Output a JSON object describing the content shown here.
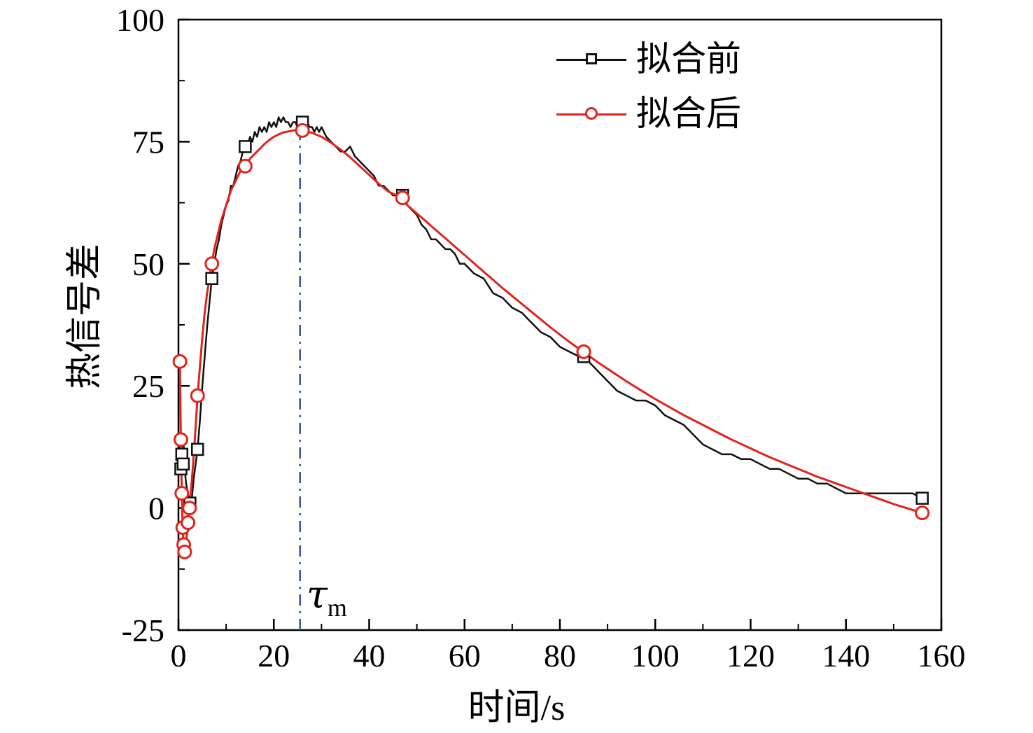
{
  "chart_data": {
    "type": "line",
    "title": "",
    "xlabel": "时间/s",
    "ylabel": "热信号差",
    "xlim": [
      0,
      160
    ],
    "ylim": [
      -25,
      100
    ],
    "xticks": [
      0,
      20,
      40,
      60,
      80,
      100,
      120,
      140,
      160
    ],
    "x_minor_step": 10,
    "yticks": [
      -25,
      0,
      25,
      50,
      75,
      100
    ],
    "y_minor_step": 12.5,
    "grid": false,
    "legend_position": "top-center-inside",
    "annotation": {
      "label": "τ",
      "sub": "m",
      "x": 25.5,
      "y_top": 77.4,
      "line_color": "#33519e",
      "line_style": "dash-dot"
    },
    "series": [
      {
        "name": "拟合前",
        "color": "#111111",
        "marker": "square",
        "line": [
          [
            0.3,
            7
          ],
          [
            0.5,
            8
          ],
          [
            0.6,
            11
          ],
          [
            0.8,
            10
          ],
          [
            1.0,
            9
          ],
          [
            1.3,
            8
          ],
          [
            1.6,
            5
          ],
          [
            2.0,
            3
          ],
          [
            2.4,
            1
          ],
          [
            2.8,
            2
          ],
          [
            3.2,
            6
          ],
          [
            3.6,
            9
          ],
          [
            4.0,
            12
          ],
          [
            4.5,
            18
          ],
          [
            5,
            25
          ],
          [
            5.5,
            31
          ],
          [
            6,
            37
          ],
          [
            6.5,
            42
          ],
          [
            7,
            47
          ],
          [
            7.5,
            50
          ],
          [
            8,
            53
          ],
          [
            8.5,
            55
          ],
          [
            9,
            58
          ],
          [
            9.5,
            60
          ],
          [
            10,
            62
          ],
          [
            10.5,
            63
          ],
          [
            11,
            66
          ],
          [
            11.5,
            66
          ],
          [
            12,
            68
          ],
          [
            12.5,
            70
          ],
          [
            13,
            71
          ],
          [
            13.5,
            73
          ],
          [
            14,
            74
          ],
          [
            14.5,
            74
          ],
          [
            15,
            76
          ],
          [
            15.5,
            75
          ],
          [
            16,
            77
          ],
          [
            16.5,
            76
          ],
          [
            17,
            78
          ],
          [
            17.5,
            77
          ],
          [
            18,
            78
          ],
          [
            18.5,
            77
          ],
          [
            19,
            79
          ],
          [
            19.5,
            78
          ],
          [
            20,
            79
          ],
          [
            20.5,
            78
          ],
          [
            21,
            80
          ],
          [
            21.5,
            79
          ],
          [
            22,
            80
          ],
          [
            22.5,
            79
          ],
          [
            23,
            79
          ],
          [
            23.5,
            78
          ],
          [
            24,
            79
          ],
          [
            24.5,
            79
          ],
          [
            25,
            78
          ],
          [
            25.5,
            79
          ],
          [
            26,
            79
          ],
          [
            26.5,
            78
          ],
          [
            27,
            79
          ],
          [
            27.5,
            78
          ],
          [
            28,
            78
          ],
          [
            28.5,
            77
          ],
          [
            29,
            78
          ],
          [
            29.5,
            77
          ],
          [
            30,
            78
          ],
          [
            31,
            76
          ],
          [
            32,
            75
          ],
          [
            33,
            74
          ],
          [
            34,
            73
          ],
          [
            35,
            73
          ],
          [
            36,
            74
          ],
          [
            37,
            72
          ],
          [
            38,
            71
          ],
          [
            39,
            70
          ],
          [
            40,
            69
          ],
          [
            41,
            68
          ],
          [
            42,
            66
          ],
          [
            43,
            66
          ],
          [
            44,
            65
          ],
          [
            45,
            64
          ],
          [
            46,
            64
          ],
          [
            47,
            64
          ],
          [
            48,
            62
          ],
          [
            49,
            61
          ],
          [
            50,
            60
          ],
          [
            51,
            58
          ],
          [
            52,
            57
          ],
          [
            53,
            55
          ],
          [
            54,
            55
          ],
          [
            55,
            54
          ],
          [
            56,
            53
          ],
          [
            57,
            53
          ],
          [
            58,
            52
          ],
          [
            59,
            50
          ],
          [
            60,
            50
          ],
          [
            62,
            48
          ],
          [
            64,
            47
          ],
          [
            66,
            44
          ],
          [
            68,
            43
          ],
          [
            70,
            41
          ],
          [
            72,
            40
          ],
          [
            74,
            38
          ],
          [
            76,
            36
          ],
          [
            78,
            35
          ],
          [
            80,
            33
          ],
          [
            82,
            32
          ],
          [
            84,
            31
          ],
          [
            86,
            30
          ],
          [
            88,
            28
          ],
          [
            90,
            26
          ],
          [
            92,
            24
          ],
          [
            94,
            23
          ],
          [
            96,
            22
          ],
          [
            98,
            22
          ],
          [
            100,
            21
          ],
          [
            102,
            19
          ],
          [
            104,
            18
          ],
          [
            106,
            17
          ],
          [
            108,
            15
          ],
          [
            110,
            13
          ],
          [
            112,
            12
          ],
          [
            114,
            11
          ],
          [
            116,
            11
          ],
          [
            118,
            10
          ],
          [
            120,
            10
          ],
          [
            122,
            9
          ],
          [
            124,
            8
          ],
          [
            126,
            8
          ],
          [
            128,
            7
          ],
          [
            130,
            6
          ],
          [
            132,
            6
          ],
          [
            134,
            5
          ],
          [
            136,
            5
          ],
          [
            138,
            4
          ],
          [
            140,
            3
          ],
          [
            142,
            3
          ],
          [
            144,
            3
          ],
          [
            146,
            3
          ],
          [
            148,
            3
          ],
          [
            150,
            3
          ],
          [
            152,
            3
          ],
          [
            154,
            3
          ],
          [
            156,
            2
          ]
        ],
        "markers": [
          [
            0.5,
            8
          ],
          [
            0.7,
            11
          ],
          [
            1.0,
            9
          ],
          [
            2.4,
            1
          ],
          [
            4,
            12
          ],
          [
            7,
            47
          ],
          [
            14,
            74
          ],
          [
            26,
            79
          ],
          [
            47,
            64
          ],
          [
            85,
            31
          ],
          [
            156,
            2
          ]
        ]
      },
      {
        "name": "拟合后",
        "color": "#e2231a",
        "marker": "circle",
        "line": [
          [
            0.3,
            30
          ],
          [
            0.4,
            22
          ],
          [
            0.5,
            14
          ],
          [
            0.6,
            8
          ],
          [
            0.7,
            3
          ],
          [
            0.8,
            -1
          ],
          [
            0.9,
            -4
          ],
          [
            1.0,
            -6
          ],
          [
            1.1,
            -7.5
          ],
          [
            1.2,
            -8.5
          ],
          [
            1.3,
            -9
          ],
          [
            1.5,
            -8
          ],
          [
            1.8,
            -5
          ],
          [
            2.0,
            -3
          ],
          [
            2.3,
            0
          ],
          [
            2.6,
            3
          ],
          [
            3.0,
            8
          ],
          [
            3.5,
            15
          ],
          [
            4.0,
            23
          ],
          [
            4.5,
            29
          ],
          [
            5,
            35
          ],
          [
            5.5,
            40
          ],
          [
            6,
            44
          ],
          [
            6.5,
            47
          ],
          [
            7,
            50
          ],
          [
            7.5,
            53
          ],
          [
            8,
            55
          ],
          [
            9,
            59
          ],
          [
            10,
            62
          ],
          [
            11,
            65
          ],
          [
            12,
            67
          ],
          [
            13,
            69
          ],
          [
            14,
            70
          ],
          [
            15,
            71.5
          ],
          [
            16,
            72.5
          ],
          [
            17,
            73.5
          ],
          [
            18,
            74.5
          ],
          [
            19,
            75.3
          ],
          [
            20,
            76
          ],
          [
            21,
            76.5
          ],
          [
            22,
            76.9
          ],
          [
            23,
            77.1
          ],
          [
            24,
            77.3
          ],
          [
            25,
            77.4
          ],
          [
            26,
            77.3
          ],
          [
            27,
            77.1
          ],
          [
            28,
            76.8
          ],
          [
            29,
            76.4
          ],
          [
            30,
            76
          ],
          [
            32,
            74.8
          ],
          [
            34,
            73.4
          ],
          [
            36,
            71.8
          ],
          [
            38,
            70
          ],
          [
            40,
            68.2
          ],
          [
            42,
            66.4
          ],
          [
            44,
            64.8
          ],
          [
            46,
            63.9
          ],
          [
            48,
            62
          ],
          [
            50,
            60.3
          ],
          [
            52,
            58.6
          ],
          [
            54,
            56.9
          ],
          [
            56,
            55.2
          ],
          [
            58,
            53.5
          ],
          [
            60,
            51.8
          ],
          [
            62,
            50.1
          ],
          [
            64,
            48.4
          ],
          [
            66,
            46.7
          ],
          [
            68,
            45
          ],
          [
            70,
            43.4
          ],
          [
            72,
            41.8
          ],
          [
            74,
            40.2
          ],
          [
            76,
            38.6
          ],
          [
            78,
            37
          ],
          [
            80,
            35.5
          ],
          [
            82,
            34
          ],
          [
            84,
            32.6
          ],
          [
            86,
            31.2
          ],
          [
            88,
            29.8
          ],
          [
            90,
            28.5
          ],
          [
            92,
            27.2
          ],
          [
            94,
            25.9
          ],
          [
            96,
            24.7
          ],
          [
            98,
            23.5
          ],
          [
            100,
            22.3
          ],
          [
            102,
            21.2
          ],
          [
            104,
            20.1
          ],
          [
            106,
            19
          ],
          [
            108,
            18
          ],
          [
            110,
            17
          ],
          [
            112,
            16
          ],
          [
            114,
            15
          ],
          [
            116,
            14
          ],
          [
            118,
            13.1
          ],
          [
            120,
            12.2
          ],
          [
            122,
            11.3
          ],
          [
            124,
            10.4
          ],
          [
            126,
            9.6
          ],
          [
            128,
            8.8
          ],
          [
            130,
            8
          ],
          [
            132,
            7.2
          ],
          [
            134,
            6.4
          ],
          [
            136,
            5.7
          ],
          [
            138,
            5
          ],
          [
            140,
            4.3
          ],
          [
            142,
            3.6
          ],
          [
            144,
            2.9
          ],
          [
            146,
            2.2
          ],
          [
            148,
            1.5
          ],
          [
            150,
            0.8
          ],
          [
            152,
            0.2
          ],
          [
            154,
            -0.4
          ],
          [
            156,
            -1
          ]
        ],
        "markers": [
          [
            0.3,
            30
          ],
          [
            0.5,
            14
          ],
          [
            0.7,
            3
          ],
          [
            0.9,
            -4
          ],
          [
            1.1,
            -7.5
          ],
          [
            1.3,
            -9
          ],
          [
            2.0,
            -3
          ],
          [
            2.3,
            0
          ],
          [
            4,
            23
          ],
          [
            7,
            50
          ],
          [
            14,
            70
          ],
          [
            26,
            77.3
          ],
          [
            47,
            63.5
          ],
          [
            85,
            32
          ],
          [
            156,
            -1
          ]
        ]
      }
    ]
  }
}
